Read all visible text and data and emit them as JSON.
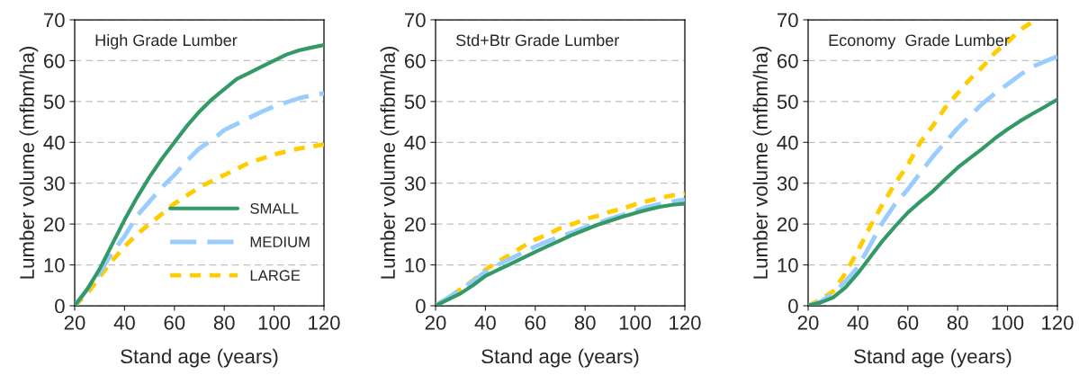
{
  "chart_data": [
    {
      "type": "line",
      "title": "High Grade Lumber",
      "xlabel": "Stand age (years)",
      "ylabel": "Lumber volume (mfbm/ha)",
      "x": [
        20,
        25,
        30,
        35,
        40,
        45,
        50,
        55,
        60,
        65,
        70,
        75,
        80,
        85,
        90,
        95,
        100,
        105,
        110,
        115,
        120
      ],
      "xlim": [
        20,
        120
      ],
      "xticks": [
        20,
        40,
        60,
        80,
        100,
        120
      ],
      "ylim": [
        0,
        70
      ],
      "yticks": [
        0,
        10,
        20,
        30,
        40,
        50,
        60,
        70
      ],
      "grid": "y",
      "legend": "bottom right",
      "series": [
        {
          "name": "SMALL",
          "color": "#339966",
          "line_style": "solid",
          "values": [
            0,
            4,
            9,
            15,
            21,
            26.5,
            31.5,
            36,
            40,
            44,
            47.5,
            50.5,
            53,
            55.5,
            57,
            58.5,
            60,
            61.5,
            62.5,
            63.2,
            63.8
          ]
        },
        {
          "name": "MEDIUM",
          "color": "#99ccff",
          "line_style": "dashed",
          "values": [
            0,
            4,
            8,
            13,
            17,
            22,
            25.5,
            29,
            32,
            35.5,
            38.5,
            40.5,
            43,
            44.5,
            46,
            47.5,
            48.8,
            49.8,
            50.8,
            51.5,
            52
          ]
        },
        {
          "name": "LARGE",
          "color": "#ffcc00",
          "line_style": "dotted",
          "values": [
            0,
            3,
            7,
            11,
            14.5,
            17.5,
            20,
            22.5,
            25,
            27,
            29,
            30.5,
            32,
            33.5,
            35,
            36,
            37,
            37.8,
            38.5,
            39,
            39.5
          ]
        }
      ]
    },
    {
      "type": "line",
      "title": "Std+Btr Grade Lumber",
      "xlabel": "Stand age (years)",
      "ylabel": "Lumber volume (mfbm/ha)",
      "x": [
        20,
        25,
        30,
        35,
        40,
        45,
        50,
        55,
        60,
        65,
        70,
        75,
        80,
        85,
        90,
        95,
        100,
        105,
        110,
        115,
        120
      ],
      "xlim": [
        20,
        120
      ],
      "xticks": [
        20,
        40,
        60,
        80,
        100,
        120
      ],
      "ylim": [
        0,
        70
      ],
      "yticks": [
        0,
        10,
        20,
        30,
        40,
        50,
        60,
        70
      ],
      "grid": "y",
      "series": [
        {
          "color": "#339966",
          "line_style": "solid",
          "values": [
            0,
            1.5,
            3,
            5,
            7.3,
            8.8,
            10.2,
            11.7,
            13.2,
            14.6,
            16,
            17.4,
            18.6,
            19.8,
            20.8,
            21.8,
            22.7,
            23.5,
            24.2,
            24.7,
            25
          ]
        },
        {
          "color": "#99ccff",
          "line_style": "dashed",
          "values": [
            0,
            2,
            4,
            6,
            8.3,
            10,
            11.5,
            13,
            14.5,
            15.8,
            17,
            18,
            19.2,
            20.2,
            21.3,
            22.2,
            23.2,
            24.2,
            24.9,
            25.5,
            26
          ]
        },
        {
          "color": "#ffcc00",
          "line_style": "dotted",
          "values": [
            0,
            2,
            4,
            6.2,
            8.8,
            10.8,
            12.5,
            14.5,
            16.2,
            17.5,
            19,
            20,
            21.2,
            22,
            23,
            23.8,
            24.8,
            25.6,
            26.4,
            27,
            27.5
          ]
        }
      ]
    },
    {
      "type": "line",
      "title": "Economy  Grade Lumber",
      "xlabel": "Stand age (years)",
      "ylabel": "Lumber volume (mfbm/ha)",
      "x": [
        20,
        25,
        30,
        35,
        40,
        45,
        50,
        55,
        60,
        65,
        70,
        75,
        80,
        85,
        90,
        95,
        100,
        105,
        110,
        115,
        120
      ],
      "xlim": [
        20,
        120
      ],
      "xticks": [
        20,
        40,
        60,
        80,
        100,
        120
      ],
      "ylim": [
        0,
        70
      ],
      "yticks": [
        0,
        10,
        20,
        30,
        40,
        50,
        60,
        70
      ],
      "grid": "y",
      "series": [
        {
          "color": "#339966",
          "line_style": "solid",
          "values": [
            0,
            0.8,
            2,
            4.5,
            8,
            12,
            16,
            19.5,
            22.8,
            25.5,
            28,
            31,
            33.8,
            36.2,
            38.5,
            41,
            43.2,
            45.2,
            47,
            48.7,
            50.5
          ]
        },
        {
          "color": "#99ccff",
          "line_style": "dashed",
          "values": [
            0,
            1,
            3,
            6,
            9.5,
            15,
            20.5,
            25,
            28.5,
            32.5,
            36.5,
            40,
            43.5,
            46.5,
            49.5,
            52,
            54.2,
            56.5,
            58.5,
            59.8,
            61
          ]
        },
        {
          "color": "#ffcc00",
          "line_style": "dotted",
          "x": [
            20,
            25,
            30,
            35,
            40,
            45,
            50,
            55,
            60,
            65,
            70,
            75,
            80,
            85,
            90,
            95,
            100,
            105,
            110,
            112
          ],
          "values": [
            0,
            1.5,
            3.5,
            8,
            13.5,
            19.5,
            25,
            30,
            34.5,
            40,
            44,
            48.5,
            52,
            55.5,
            58.5,
            62,
            64.5,
            67.5,
            69.5,
            70
          ]
        }
      ]
    }
  ]
}
